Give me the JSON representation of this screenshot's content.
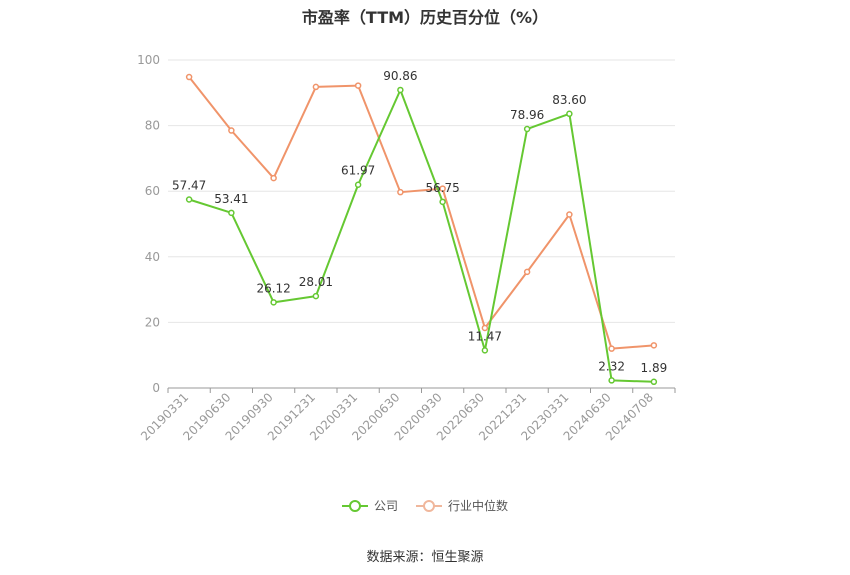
{
  "title": "市盈率（TTM）历史百分位（%）",
  "source": "数据来源：恒生聚源",
  "colors": {
    "company": "#65c832",
    "industry": "#f0946a",
    "grid": "#e6e6e6",
    "axis": "#999999",
    "tick_text": "#999999",
    "label_text": "#333333"
  },
  "chart_data": {
    "type": "line",
    "title": "市盈率（TTM）历史百分位（%）",
    "categories": [
      "20190331",
      "20190630",
      "20190930",
      "20191231",
      "20200331",
      "20200630",
      "20200930",
      "20220630",
      "20221231",
      "20230331",
      "20240630",
      "20240708"
    ],
    "ylim": [
      0,
      100
    ],
    "yticks": [
      0,
      20,
      40,
      60,
      80,
      100
    ],
    "grid": true,
    "legend_position": "bottom",
    "series": [
      {
        "name": "公司",
        "color": "#65c832",
        "values": [
          57.47,
          53.41,
          26.12,
          28.01,
          61.97,
          90.86,
          56.75,
          11.47,
          78.96,
          83.6,
          2.32,
          1.89
        ],
        "labels": [
          "57.47",
          "53.41",
          "26.12",
          "28.01",
          "61.97",
          "90.86",
          "56.75",
          "11.47",
          "78.96",
          "83.60",
          "2.32",
          "1.89"
        ]
      },
      {
        "name": "行业中位数",
        "color": "#f0946a",
        "values": [
          94.8,
          78.5,
          64.0,
          91.8,
          92.2,
          59.7,
          60.8,
          18.3,
          35.4,
          52.9,
          12.0,
          13.0
        ]
      }
    ]
  }
}
